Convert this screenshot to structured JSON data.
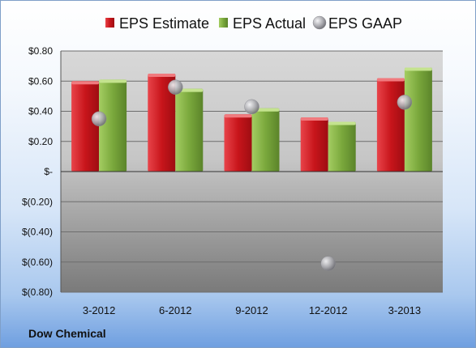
{
  "company": "Dow Chemical",
  "colors": {
    "estimate": "#d9262b",
    "actual": "#8cb84a",
    "gaap": "#b8b8bc"
  },
  "chart_data": {
    "type": "bar",
    "categories": [
      "3-2012",
      "6-2012",
      "9-2012",
      "12-2012",
      "3-2013"
    ],
    "series": [
      {
        "name": "EPS Estimate",
        "kind": "bar",
        "values": [
          0.6,
          0.65,
          0.38,
          0.36,
          0.62
        ]
      },
      {
        "name": "EPS Actual",
        "kind": "bar",
        "values": [
          0.61,
          0.55,
          0.42,
          0.33,
          0.69
        ]
      },
      {
        "name": "EPS GAAP",
        "kind": "marker",
        "values": [
          0.35,
          0.56,
          0.43,
          -0.61,
          0.46
        ]
      }
    ],
    "ylim": [
      -0.8,
      0.8
    ],
    "yticks": [
      0.8,
      0.6,
      0.4,
      0.2,
      0,
      -0.2,
      -0.4,
      -0.6,
      -0.8
    ],
    "ytick_labels": [
      "$0.80",
      "$0.60",
      "$0.40",
      "$0.20",
      "$-",
      "$(0.20)",
      "$(0.40)",
      "$(0.60)",
      "$(0.80)"
    ],
    "legend_position": "top",
    "grid": true
  }
}
